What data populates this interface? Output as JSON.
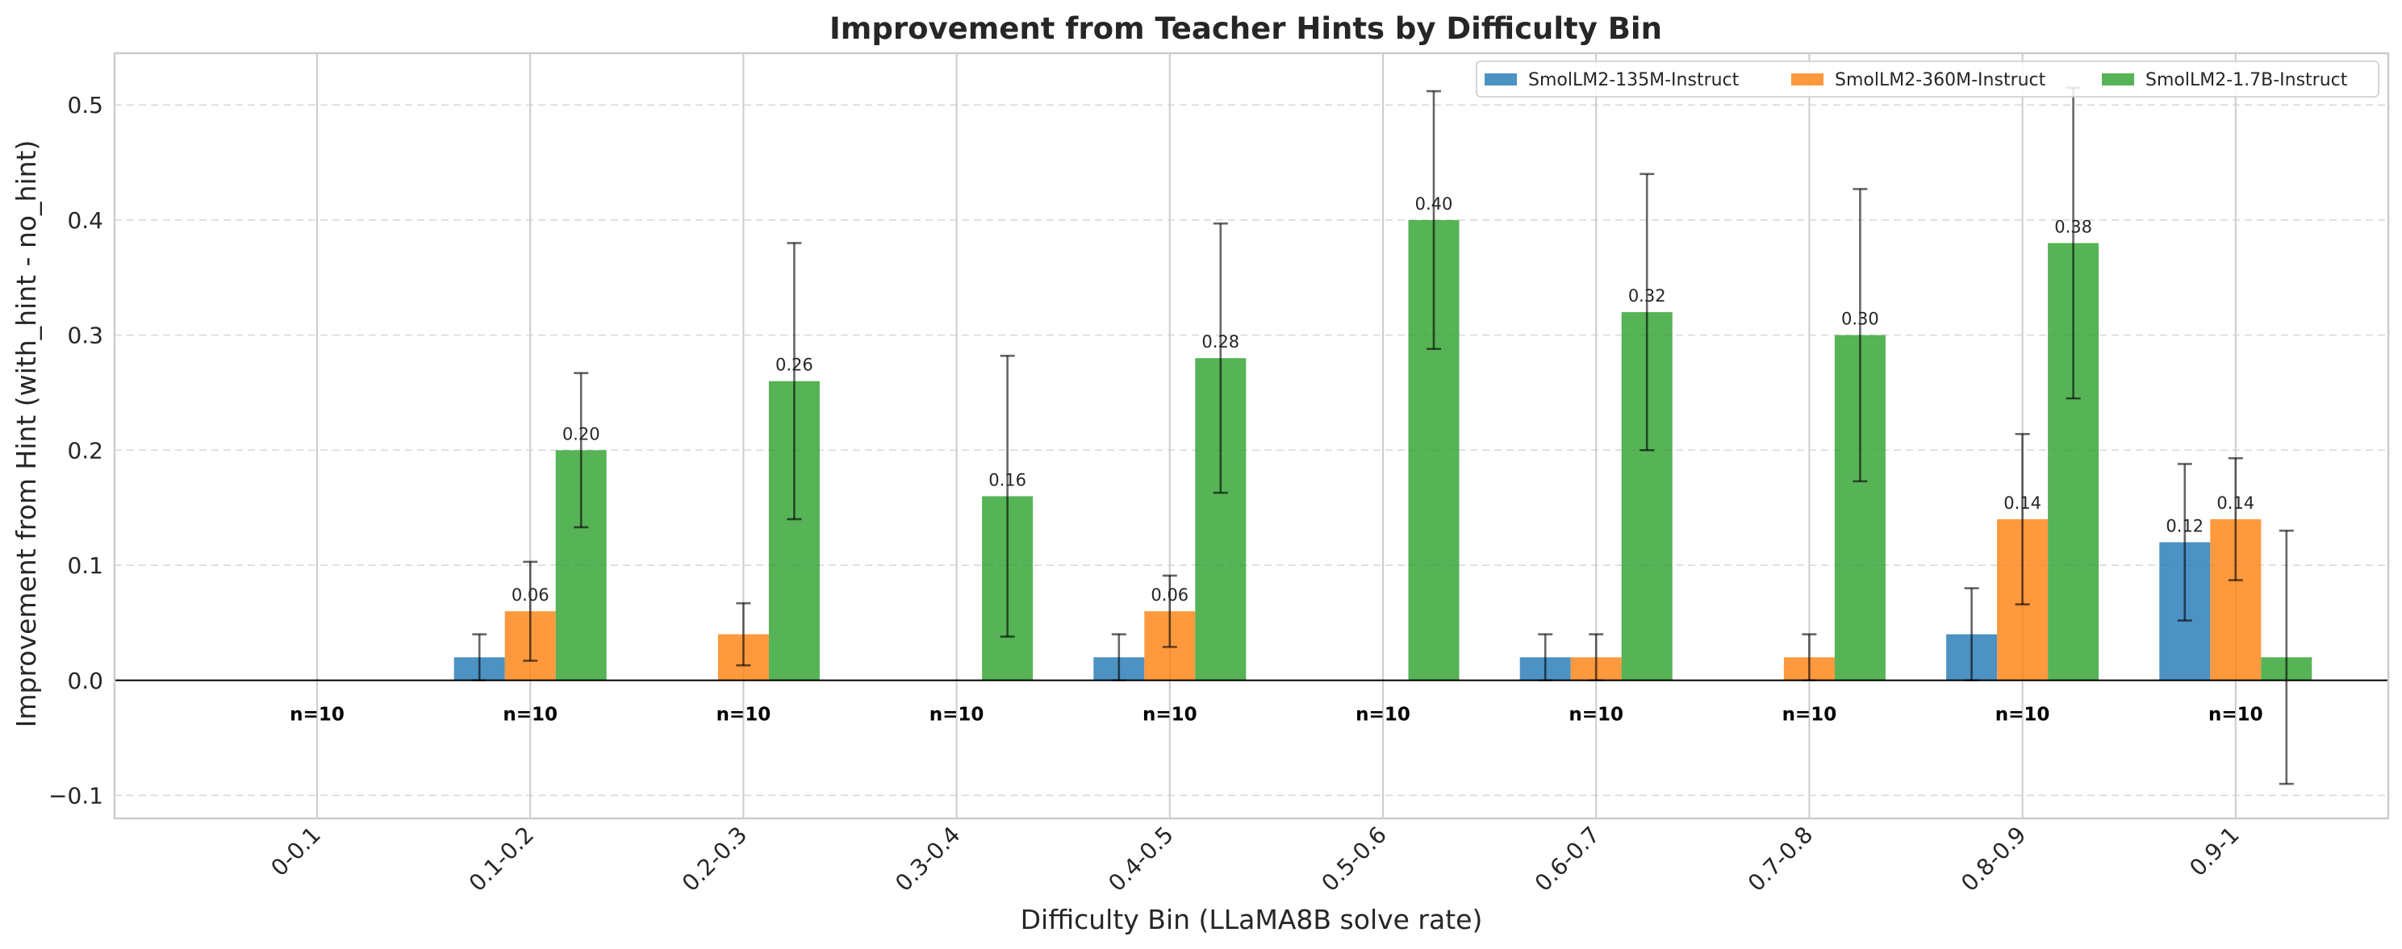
{
  "chart_data": {
    "type": "bar",
    "title": "Improvement from Teacher Hints by Difficulty Bin",
    "xlabel": "Difficulty Bin (LLaMA8B solve rate)",
    "ylabel": "Improvement from Hint (with_hint - no_hint)",
    "categories": [
      "0-0.1",
      "0.1-0.2",
      "0.2-0.3",
      "0.3-0.4",
      "0.4-0.5",
      "0.5-0.6",
      "0.6-0.7",
      "0.7-0.8",
      "0.8-0.9",
      "0.9-1"
    ],
    "ylim": [
      -0.12,
      0.545
    ],
    "yticks": [
      -0.1,
      0.0,
      0.1,
      0.2,
      0.3,
      0.4,
      0.5
    ],
    "ytick_labels": [
      "−0.1",
      "0.0",
      "0.1",
      "0.2",
      "0.3",
      "0.4",
      "0.5"
    ],
    "grid": true,
    "legend_position": "top-right",
    "series": [
      {
        "name": "SmolLM2-135M-Instruct",
        "color": "#1f77b4",
        "values": [
          0,
          0.02,
          0,
          0,
          0.02,
          0,
          0.02,
          0,
          0.04,
          0.12
        ],
        "errors": [
          null,
          0.02,
          null,
          null,
          0.02,
          null,
          0.02,
          null,
          0.04,
          0.068
        ],
        "labels": [
          "",
          "",
          "",
          "",
          "",
          "",
          "",
          "",
          "",
          "0.12"
        ]
      },
      {
        "name": "SmolLM2-360M-Instruct",
        "color": "#ff7f0e",
        "values": [
          0,
          0.06,
          0.04,
          0,
          0.06,
          0,
          0.02,
          0.02,
          0.14,
          0.14
        ],
        "errors": [
          null,
          0.043,
          0.027,
          null,
          0.031,
          null,
          0.02,
          0.02,
          0.074,
          0.053
        ],
        "labels": [
          "",
          "0.06",
          "",
          "",
          "0.06",
          "",
          "",
          "",
          "0.14",
          "0.14"
        ]
      },
      {
        "name": "SmolLM2-1.7B-Instruct",
        "color": "#2ca02c",
        "values": [
          0,
          0.2,
          0.26,
          0.16,
          0.28,
          0.4,
          0.32,
          0.3,
          0.38,
          0.02
        ],
        "errors": [
          null,
          0.067,
          0.12,
          0.122,
          0.117,
          0.112,
          0.12,
          0.127,
          0.135,
          0.11
        ],
        "labels": [
          "",
          "0.20",
          "0.26",
          "0.16",
          "0.28",
          "0.40",
          "0.32",
          "0.30",
          "0.38",
          ""
        ]
      }
    ],
    "annotations": [
      "n=10",
      "n=10",
      "n=10",
      "n=10",
      "n=10",
      "n=10",
      "n=10",
      "n=10",
      "n=10",
      "n=10"
    ]
  }
}
